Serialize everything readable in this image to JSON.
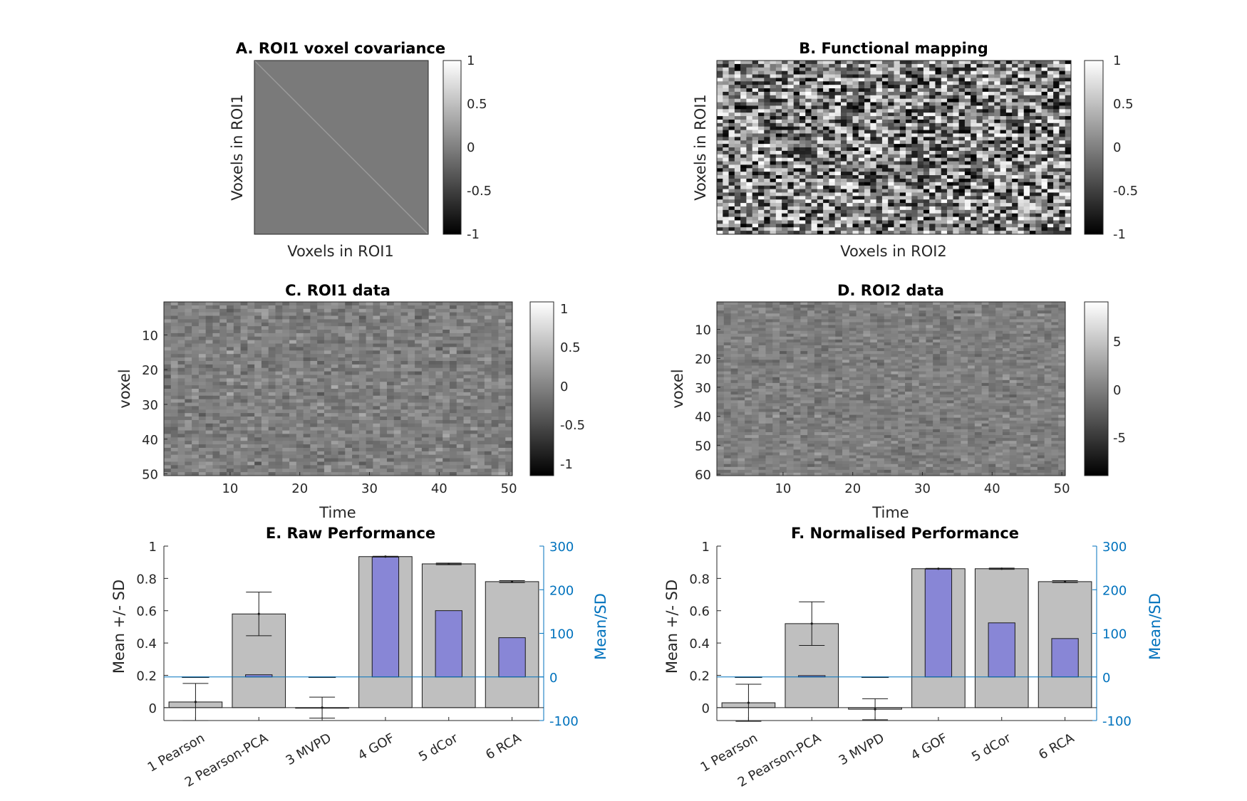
{
  "chart_data": [
    {
      "id": "A",
      "type": "heatmap",
      "title": "A. ROI1 voxel covariance",
      "xlabel": "Voxels in ROI1",
      "ylabel": "Voxels in ROI1",
      "pattern": "near-zero matrix with positive diagonal",
      "colormap": "gray",
      "colorbar": {
        "ticks": [
          "-1",
          "-0.5",
          "0",
          "0.5",
          "1"
        ],
        "range": [
          -1,
          1
        ]
      }
    },
    {
      "id": "B",
      "type": "heatmap",
      "title": "B. Functional mapping",
      "xlabel": "Voxels in ROI2",
      "ylabel": "Voxels in ROI1",
      "pattern": "random values",
      "rows": 50,
      "cols": 60,
      "colormap": "gray",
      "colorbar": {
        "ticks": [
          "-1",
          "-0.5",
          "0",
          "0.5",
          "1"
        ],
        "range": [
          -1,
          1
        ]
      }
    },
    {
      "id": "C",
      "type": "heatmap",
      "title": "C. ROI1 data",
      "xlabel": "Time",
      "ylabel": "voxel",
      "rows": 50,
      "cols": 50,
      "xticks": [
        "10",
        "20",
        "30",
        "40",
        "50"
      ],
      "yticks": [
        "10",
        "20",
        "30",
        "40",
        "50"
      ],
      "colormap": "gray",
      "colorbar": {
        "ticks": [
          "-1",
          "-0.5",
          "0",
          "0.5",
          "1"
        ],
        "range": [
          -1.1,
          1.1
        ]
      }
    },
    {
      "id": "D",
      "type": "heatmap",
      "title": "D. ROI2 data",
      "xlabel": "Time",
      "ylabel": "voxel",
      "rows": 60,
      "cols": 50,
      "xticks": [
        "10",
        "20",
        "30",
        "40",
        "50"
      ],
      "yticks": [
        "10",
        "20",
        "30",
        "40",
        "50",
        "60"
      ],
      "colormap": "gray",
      "colorbar": {
        "ticks": [
          "-5",
          "0",
          "5"
        ],
        "range": [
          -9,
          9
        ]
      }
    },
    {
      "id": "E",
      "type": "bar",
      "title": "E. Raw Performance",
      "ylabel": "Mean +/- SD",
      "y2label": "Mean/SD",
      "categories": [
        "1 Pearson",
        "2 Pearson-PCA",
        "3 MVPD",
        "4 GOF",
        "5 dCor",
        "6 RCA"
      ],
      "ylim": [
        -0.08,
        1
      ],
      "yticks": [
        "0",
        "0.2",
        "0.4",
        "0.6",
        "0.8",
        "1"
      ],
      "y2lim": [
        -100,
        300
      ],
      "y2ticks": [
        "-100",
        "0",
        "100",
        "200",
        "300"
      ],
      "grid": false,
      "series": [
        {
          "values": [
            0.035,
            0.58,
            0.0,
            0.935,
            0.89,
            0.78
          ],
          "sd": [
            0.115,
            0.135,
            0.065,
            0.002,
            0.005,
            0.006
          ],
          "color": "#BFBFBF"
        },
        {
          "values": [
            -1,
            5,
            0,
            275,
            152,
            90
          ],
          "color": "#8886D6"
        }
      ],
      "colors": {
        "mean_bar": "#BFBFBF",
        "ratio_bar": "#8886D6",
        "right_axis": "#0072BD"
      }
    },
    {
      "id": "F",
      "type": "bar",
      "title": "F. Normalised Performance",
      "ylabel": "Mean +/- SD",
      "y2label": "Mean/SD",
      "categories": [
        "1 Pearson",
        "2 Pearson-PCA",
        "3 MVPD",
        "4 GOF",
        "5 dCor",
        "6 RCA"
      ],
      "ylim": [
        -0.08,
        1
      ],
      "yticks": [
        "0",
        "0.2",
        "0.4",
        "0.6",
        "0.8",
        "1"
      ],
      "y2lim": [
        -100,
        300
      ],
      "y2ticks": [
        "-100",
        "0",
        "100",
        "200",
        "300"
      ],
      "grid": false,
      "series": [
        {
          "values": [
            0.03,
            0.52,
            -0.01,
            0.86,
            0.86,
            0.78
          ],
          "sd": [
            0.115,
            0.135,
            0.065,
            0.002,
            0.004,
            0.006
          ],
          "color": "#BFBFBF"
        },
        {
          "values": [
            -1,
            3,
            0,
            248,
            124,
            88
          ],
          "color": "#8886D6"
        }
      ],
      "colors": {
        "mean_bar": "#BFBFBF",
        "ratio_bar": "#8886D6",
        "right_axis": "#0072BD"
      }
    }
  ]
}
